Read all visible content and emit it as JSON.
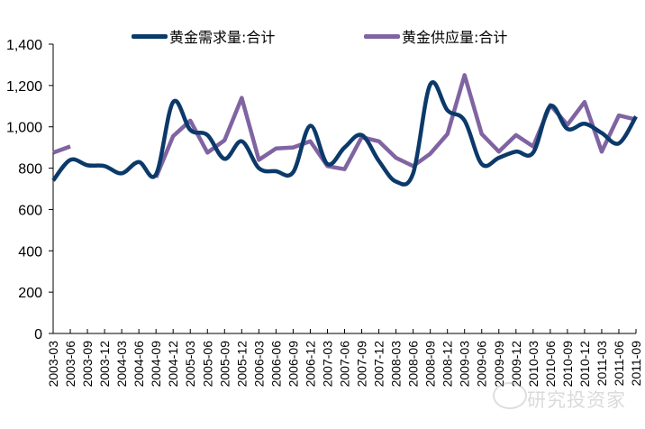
{
  "chart_data": {
    "type": "line",
    "title": "",
    "xlabel": "",
    "ylabel": "",
    "ylim": [
      0,
      1400
    ],
    "yticks": [
      0,
      200,
      400,
      600,
      800,
      1000,
      1200,
      1400
    ],
    "ytick_labels": [
      "0",
      "200",
      "400",
      "600",
      "800",
      "1,000",
      "1,200",
      "1,400"
    ],
    "grid": false,
    "legend_position": "top",
    "categories": [
      "2003-03",
      "2003-06",
      "2003-09",
      "2003-12",
      "2004-03",
      "2004-06",
      "2004-09",
      "2004-12",
      "2005-03",
      "2005-06",
      "2005-09",
      "2005-12",
      "2006-03",
      "2006-06",
      "2006-09",
      "2006-12",
      "2007-03",
      "2007-06",
      "2007-09",
      "2007-12",
      "2008-03",
      "2008-06",
      "2008-09",
      "2008-12",
      "2009-03",
      "2009-06",
      "2009-09",
      "2009-12",
      "2010-03",
      "2010-06",
      "2010-09",
      "2010-12",
      "2011-03",
      "2011-06",
      "2011-09"
    ],
    "series": [
      {
        "name": "黄金需求量:合计",
        "color": "#0B3A6A",
        "smooth": true,
        "values": [
          740,
          840,
          814,
          810,
          775,
          830,
          770,
          1120,
          985,
          960,
          845,
          930,
          800,
          785,
          780,
          1005,
          820,
          900,
          960,
          835,
          735,
          775,
          1205,
          1080,
          1030,
          820,
          850,
          880,
          875,
          1100,
          990,
          1015,
          970,
          920,
          1050
        ]
      },
      {
        "name": "黄金供应量:合计",
        "color": "#8064A2",
        "smooth": false,
        "values": [
          875,
          905,
          null,
          null,
          null,
          null,
          755,
          955,
          1030,
          875,
          935,
          1140,
          840,
          895,
          900,
          930,
          810,
          795,
          950,
          930,
          850,
          810,
          870,
          965,
          1250,
          965,
          880,
          960,
          905,
          1105,
          1010,
          1120,
          880,
          1055,
          1035
        ]
      }
    ]
  },
  "legend": {
    "demand_label": "黄金需求量:合计",
    "supply_label": "黄金供应量:合计"
  },
  "watermark": {
    "text": "研究投资家"
  }
}
